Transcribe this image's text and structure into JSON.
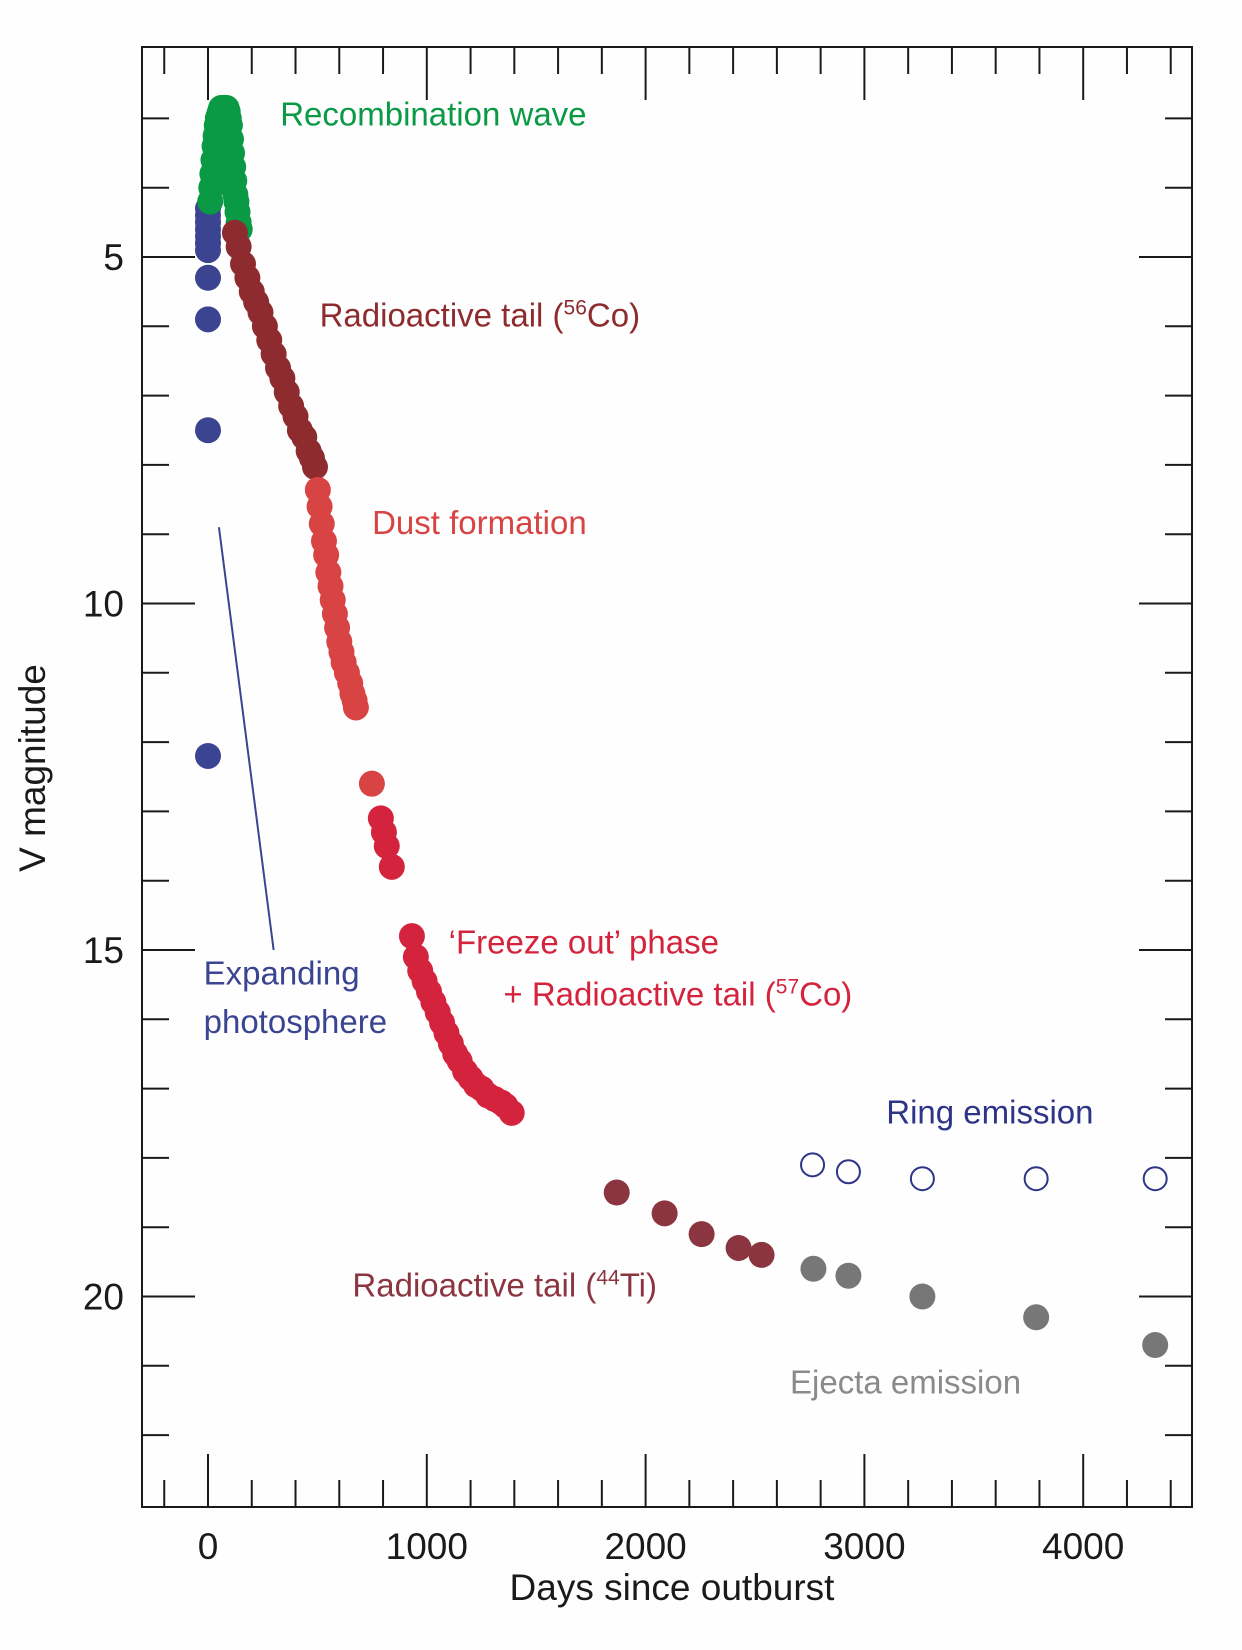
{
  "chart_data": {
    "type": "scatter",
    "title": "",
    "xlabel": "Days since outburst",
    "ylabel": "V magnitude",
    "xlim": [
      -300,
      4520
    ],
    "ylim": [
      23,
      2
    ],
    "y_inverted": true,
    "grid": false,
    "x_major_ticks": [
      0,
      1000,
      2000,
      3000,
      4000
    ],
    "x_tick_labels": [
      "0",
      "1000",
      "2000",
      "3000",
      "4000"
    ],
    "x_minor_step": 200,
    "y_major_ticks": [
      5,
      10,
      15,
      20
    ],
    "y_tick_labels": [
      "5",
      "10",
      "15",
      "20"
    ],
    "y_minor_step": 1,
    "series": [
      {
        "name": "Expanding photosphere",
        "color": "#3a4490",
        "marker": "filled",
        "points": [
          [
            0,
            4.3
          ],
          [
            0,
            4.4
          ],
          [
            0,
            4.5
          ],
          [
            0,
            4.6
          ],
          [
            0,
            4.7
          ],
          [
            0,
            4.8
          ],
          [
            0,
            4.9
          ],
          [
            0,
            5.3
          ],
          [
            0,
            5.9
          ],
          [
            0,
            7.5
          ],
          [
            0,
            12.2
          ]
        ]
      },
      {
        "name": "Recombination wave",
        "color": "#0a9a45",
        "marker": "filled",
        "points": [
          [
            10,
            4.2
          ],
          [
            15,
            4.0
          ],
          [
            20,
            3.8
          ],
          [
            25,
            3.6
          ],
          [
            30,
            3.4
          ],
          [
            35,
            3.25
          ],
          [
            40,
            3.1
          ],
          [
            45,
            3.0
          ],
          [
            50,
            2.95
          ],
          [
            55,
            2.9
          ],
          [
            60,
            2.85
          ],
          [
            65,
            2.85
          ],
          [
            70,
            2.85
          ],
          [
            75,
            2.85
          ],
          [
            80,
            2.85
          ],
          [
            85,
            2.85
          ],
          [
            90,
            2.9
          ],
          [
            95,
            3.0
          ],
          [
            100,
            3.1
          ],
          [
            105,
            3.3
          ],
          [
            110,
            3.5
          ],
          [
            115,
            3.7
          ],
          [
            120,
            3.9
          ],
          [
            125,
            4.1
          ],
          [
            130,
            4.2
          ],
          [
            135,
            4.35
          ],
          [
            140,
            4.5
          ],
          [
            145,
            4.6
          ]
        ]
      },
      {
        "name": "Radioactive tail (56Co)",
        "color": "#8e2b2f",
        "marker": "filled",
        "points": [
          [
            123,
            4.65
          ],
          [
            140,
            4.85
          ],
          [
            160,
            5.1
          ],
          [
            180,
            5.3
          ],
          [
            200,
            5.5
          ],
          [
            220,
            5.65
          ],
          [
            240,
            5.8
          ],
          [
            260,
            6.0
          ],
          [
            280,
            6.2
          ],
          [
            300,
            6.4
          ],
          [
            320,
            6.6
          ],
          [
            340,
            6.75
          ],
          [
            360,
            6.95
          ],
          [
            380,
            7.15
          ],
          [
            400,
            7.3
          ],
          [
            420,
            7.5
          ],
          [
            440,
            7.6
          ],
          [
            460,
            7.8
          ],
          [
            475,
            7.9
          ],
          [
            489,
            8.03
          ]
        ]
      },
      {
        "name": "Dust formation",
        "color": "#d84343",
        "marker": "filled",
        "points": [
          [
            502,
            8.36
          ],
          [
            510,
            8.6
          ],
          [
            520,
            8.85
          ],
          [
            530,
            9.1
          ],
          [
            540,
            9.3
          ],
          [
            550,
            9.55
          ],
          [
            560,
            9.75
          ],
          [
            570,
            9.95
          ],
          [
            580,
            10.15
          ],
          [
            590,
            10.35
          ],
          [
            600,
            10.55
          ],
          [
            610,
            10.7
          ],
          [
            620,
            10.85
          ],
          [
            635,
            11.0
          ],
          [
            650,
            11.15
          ],
          [
            660,
            11.3
          ],
          [
            670,
            11.4
          ],
          [
            676,
            11.5
          ],
          [
            749,
            12.6
          ]
        ]
      },
      {
        "name": "'Freeze out' phase + Radioactive tail (57Co)",
        "color": "#d4233c",
        "marker": "filled",
        "points": [
          [
            790,
            13.1
          ],
          [
            804,
            13.3
          ],
          [
            817,
            13.5
          ],
          [
            840,
            13.8
          ],
          [
            932,
            14.8
          ],
          [
            950,
            15.1
          ],
          [
            970,
            15.3
          ],
          [
            990,
            15.45
          ],
          [
            1010,
            15.6
          ],
          [
            1030,
            15.75
          ],
          [
            1050,
            15.9
          ],
          [
            1070,
            16.05
          ],
          [
            1090,
            16.2
          ],
          [
            1110,
            16.35
          ],
          [
            1130,
            16.5
          ],
          [
            1150,
            16.6
          ],
          [
            1175,
            16.75
          ],
          [
            1200,
            16.85
          ],
          [
            1225,
            16.95
          ],
          [
            1250,
            17.0
          ],
          [
            1280,
            17.1
          ],
          [
            1310,
            17.15
          ],
          [
            1340,
            17.2
          ],
          [
            1360,
            17.25
          ],
          [
            1388,
            17.35
          ]
        ]
      },
      {
        "name": "Radioactive tail (44Ti)",
        "color": "#8b3540",
        "marker": "filled",
        "points": [
          [
            1868,
            18.5
          ],
          [
            2087,
            18.8
          ],
          [
            2256,
            19.1
          ],
          [
            2425,
            19.3
          ],
          [
            2530,
            19.4
          ]
        ]
      },
      {
        "name": "Ejecta emission",
        "color": "#777777",
        "marker": "filled",
        "points": [
          [
            2767,
            19.6
          ],
          [
            2927,
            19.7
          ],
          [
            3265,
            20.0
          ],
          [
            3785,
            20.3
          ],
          [
            4329,
            20.7
          ]
        ]
      },
      {
        "name": "Ring emission",
        "color": "#2e3487",
        "marker": "open",
        "points": [
          [
            2763,
            18.1
          ],
          [
            2927,
            18.2
          ],
          [
            3265,
            18.3
          ],
          [
            3785,
            18.3
          ],
          [
            4329,
            18.3
          ]
        ]
      }
    ],
    "annotations": [
      {
        "text": "Recombination wave",
        "color": "#0a9a45",
        "at": [
          330,
          3.1
        ]
      },
      {
        "text_main": "Radioactive tail (",
        "sup": "56",
        "text_end": "Co)",
        "color": "#8e2b2f",
        "at": [
          510,
          6.0
        ]
      },
      {
        "text": "Dust formation",
        "color": "#d84343",
        "at": [
          750,
          9.0
        ]
      },
      {
        "text": "‘Freeze out’ phase",
        "color": "#d4233c",
        "at": [
          1100,
          15.05
        ]
      },
      {
        "text_main": "+ Radioactive tail (",
        "sup": "57",
        "text_end": "Co)",
        "color": "#d4233c",
        "at": [
          1350,
          15.8
        ]
      },
      {
        "text": "Expanding",
        "color": "#3a4490",
        "at": [
          -20,
          15.5
        ]
      },
      {
        "text": "photosphere",
        "color": "#3a4490",
        "at": [
          -20,
          16.2
        ]
      },
      {
        "text": "Ring emission",
        "color": "#2e3487",
        "at": [
          3100,
          17.5
        ]
      },
      {
        "text_main": "Radioactive tail (",
        "sup": "44",
        "text_end": "Ti)",
        "color": "#8b3540",
        "at": [
          660,
          20.0
        ]
      },
      {
        "text": "Ejecta emission",
        "color": "#8a8a8a",
        "at": [
          2660,
          21.4
        ]
      }
    ],
    "leader_line": {
      "from": [
        50,
        8.9
      ],
      "to": [
        300,
        15.0
      ],
      "color": "#3a4490"
    }
  }
}
